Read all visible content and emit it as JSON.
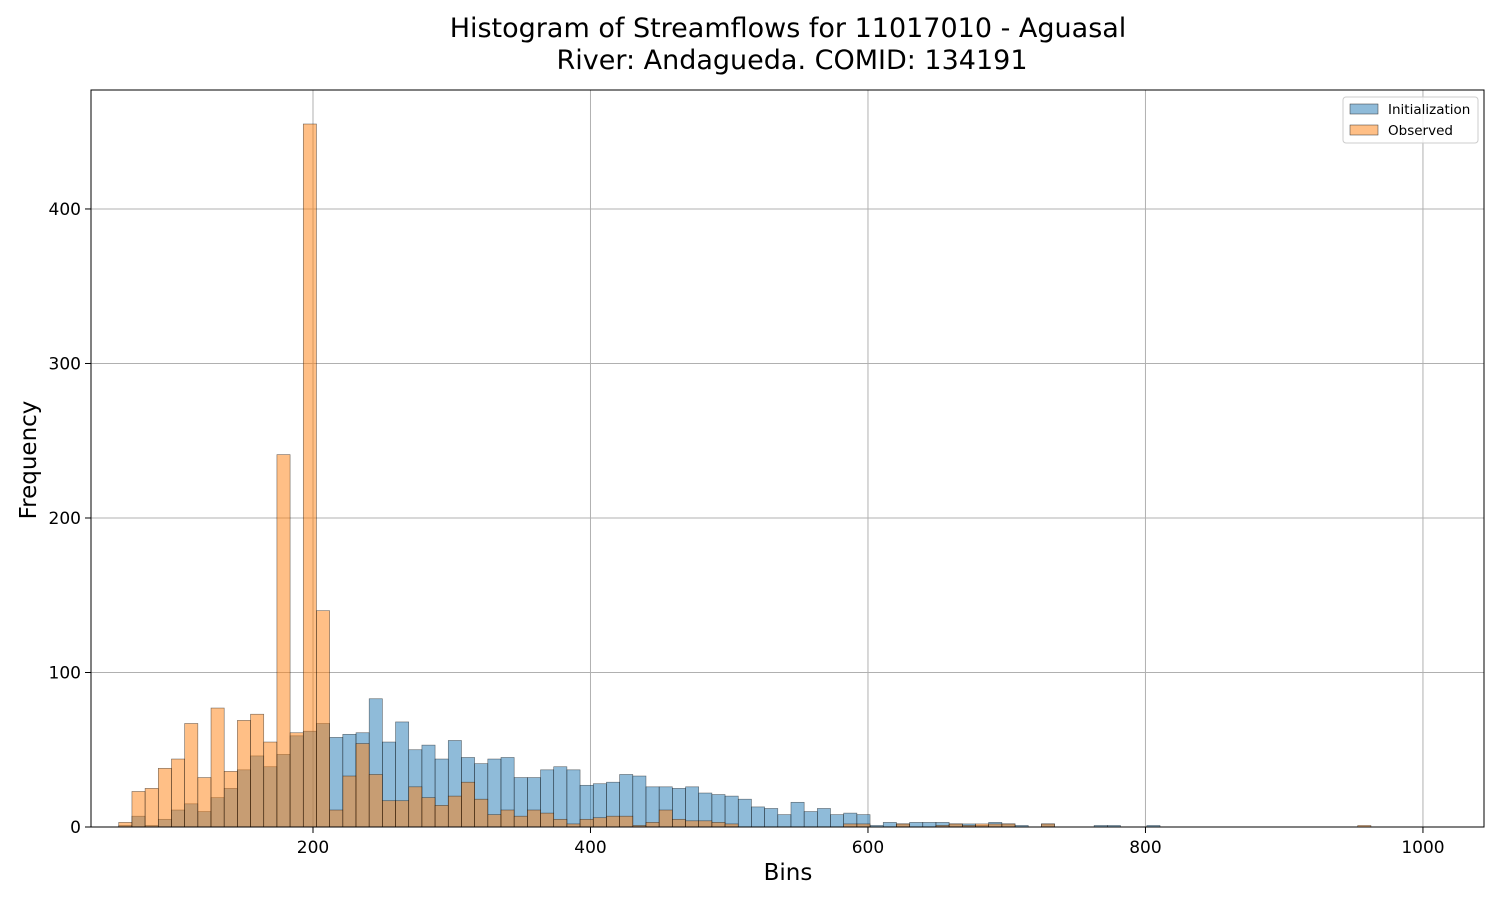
{
  "chart_data": {
    "type": "histogram",
    "title_line1": "Histogram of Streamflows for 11017010 - Aguasal",
    "title_line2": "River: Andagueda. COMID: 134191",
    "xlabel": "Bins",
    "ylabel": "Frequency",
    "xlim": [
      40,
      1044
    ],
    "ylim": [
      0,
      477
    ],
    "x_ticks": [
      200,
      400,
      600,
      800,
      1000
    ],
    "y_ticks": [
      0,
      100,
      200,
      300,
      400
    ],
    "x_tick_labels": [
      "200",
      "400",
      "600",
      "800",
      "1000"
    ],
    "y_tick_labels": [
      "0",
      "100",
      "200",
      "300",
      "400"
    ],
    "grid": true,
    "legend_position": "top-right",
    "bin_start": 60,
    "bin_width": 9.5,
    "series": [
      {
        "name": "Initialization",
        "color": "#1f77b4",
        "values": [
          1,
          7,
          1,
          5,
          11,
          15,
          10,
          19,
          25,
          37,
          46,
          39,
          47,
          59,
          62,
          67,
          58,
          60,
          61,
          83,
          55,
          68,
          50,
          53,
          44,
          56,
          45,
          41,
          44,
          45,
          32,
          32,
          37,
          39,
          37,
          27,
          28,
          29,
          34,
          33,
          26,
          26,
          25,
          26,
          22,
          21,
          20,
          18,
          13,
          12,
          8,
          16,
          10,
          12,
          8,
          9,
          8,
          1,
          3,
          2,
          3,
          3,
          3,
          2,
          2,
          1,
          3,
          2,
          1,
          0,
          2,
          0,
          0,
          0,
          1,
          1,
          0,
          0,
          1,
          0,
          0,
          0,
          0,
          0,
          0,
          0,
          0,
          0,
          0,
          0,
          0,
          0,
          0,
          0,
          0,
          0,
          0,
          0,
          0
        ]
      },
      {
        "name": "Observed",
        "color": "#ff7f0e",
        "values": [
          3,
          23,
          25,
          38,
          44,
          67,
          32,
          77,
          36,
          69,
          73,
          55,
          241,
          61,
          455,
          140,
          11,
          33,
          54,
          34,
          17,
          17,
          26,
          19,
          14,
          20,
          29,
          18,
          8,
          11,
          7,
          11,
          9,
          5,
          2,
          5,
          6,
          7,
          7,
          1,
          3,
          11,
          5,
          4,
          4,
          3,
          2,
          0,
          0,
          0,
          0,
          0,
          0,
          0,
          0,
          2,
          2,
          0,
          0,
          2,
          0,
          0,
          1,
          2,
          1,
          2,
          2,
          2,
          0,
          0,
          2,
          0,
          0,
          0,
          0,
          0,
          0,
          0,
          0,
          0,
          0,
          0,
          0,
          0,
          0,
          0,
          0,
          0,
          0,
          0,
          0,
          0,
          0,
          0,
          1,
          0,
          0,
          0,
          0,
          0,
          0,
          0,
          0,
          0,
          0,
          0,
          0,
          0,
          0,
          0,
          1
        ]
      }
    ]
  }
}
